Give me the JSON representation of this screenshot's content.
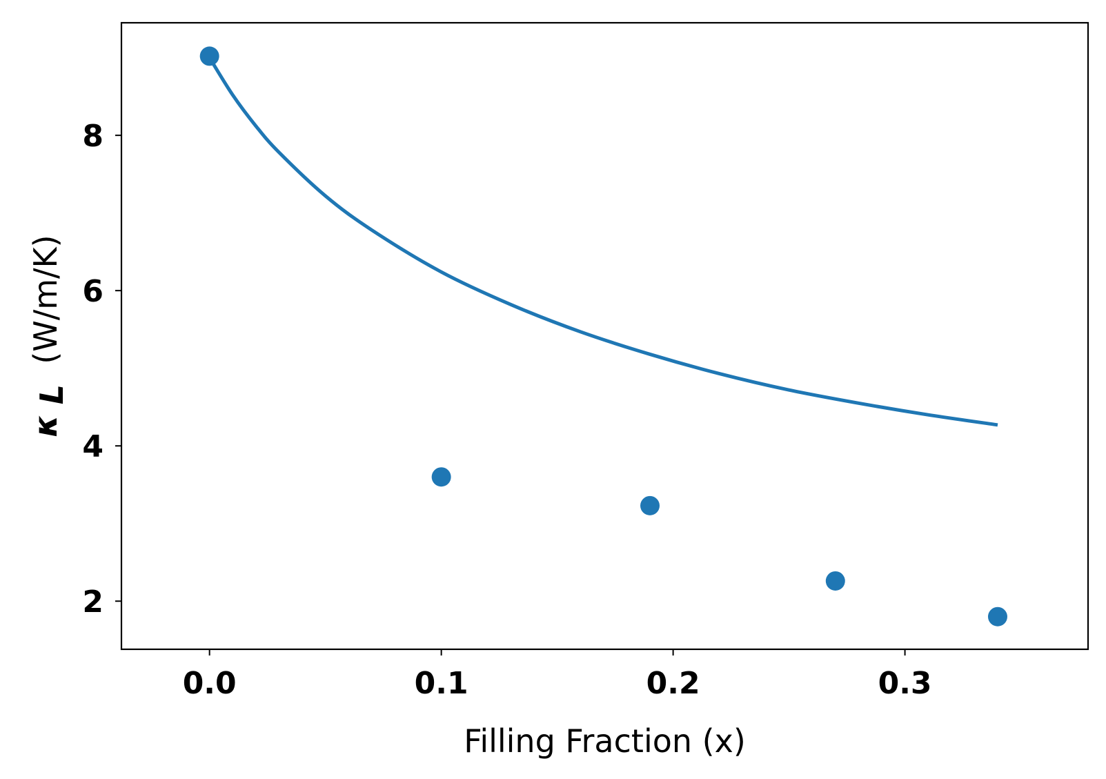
{
  "chart_data": {
    "type": "scatter",
    "xlabel": "Filling Fraction (x)",
    "ylabel": {
      "symbol": "κ",
      "subscript": "L",
      "units": " (W/m/K)"
    },
    "xlim": [
      -0.038,
      0.379
    ],
    "ylim": [
      1.38,
      9.45
    ],
    "x_ticks": [
      0.0,
      0.1,
      0.2,
      0.3
    ],
    "x_tick_labels": [
      "0.0",
      "0.1",
      "0.2",
      "0.3"
    ],
    "y_ticks": [
      2,
      4,
      6,
      8
    ],
    "y_tick_labels": [
      "2",
      "4",
      "6",
      "8"
    ],
    "grid": false,
    "legend": "none",
    "color": "#1f77b4",
    "series": [
      {
        "kind": "points",
        "x": [
          0.0,
          0.1,
          0.19,
          0.27,
          0.34
        ],
        "y": [
          9.02,
          3.6,
          3.23,
          2.26,
          1.8
        ]
      },
      {
        "kind": "curve",
        "x": [
          0.0,
          0.01,
          0.02,
          0.03,
          0.05,
          0.07,
          0.1,
          0.13,
          0.16,
          0.19,
          0.22,
          0.25,
          0.28,
          0.31,
          0.34
        ],
        "y": [
          9.0,
          8.52,
          8.12,
          7.78,
          7.22,
          6.78,
          6.24,
          5.82,
          5.47,
          5.18,
          4.93,
          4.72,
          4.55,
          4.4,
          4.27
        ]
      }
    ]
  }
}
